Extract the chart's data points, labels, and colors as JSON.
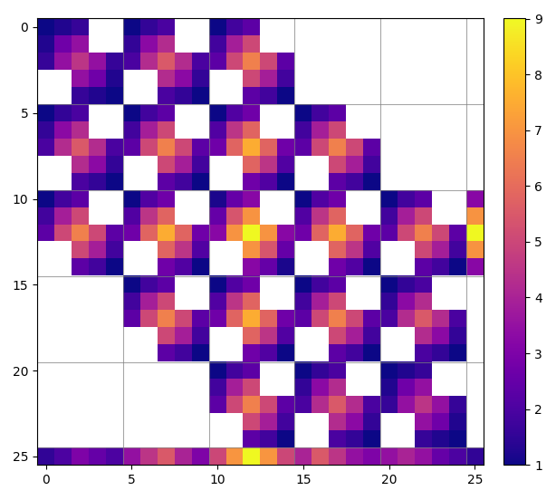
{
  "grid_size": 26,
  "colormap": "plasma",
  "vmin": 1,
  "vmax": 9,
  "figsize": [
    6.14,
    5.52
  ],
  "dpi": 100,
  "colorbar_ticks": [
    1,
    2,
    3,
    4,
    5,
    6,
    7,
    8,
    9
  ],
  "xticks": [
    0,
    5,
    10,
    15,
    20,
    25
  ],
  "yticks": [
    0,
    5,
    10,
    15,
    20,
    25
  ],
  "grid_color": "gray",
  "grid_alpha": 0.7,
  "grid_linewidth": 0.8
}
